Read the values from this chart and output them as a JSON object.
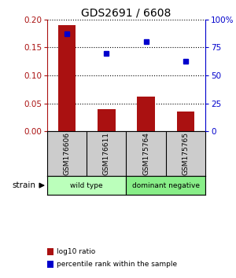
{
  "title": "GDS2691 / 6608",
  "samples": [
    "GSM176606",
    "GSM176611",
    "GSM175764",
    "GSM175765"
  ],
  "log10_ratio": [
    0.19,
    0.04,
    0.062,
    0.035
  ],
  "percentile_rank": [
    87,
    70,
    80,
    63
  ],
  "bar_color": "#aa1111",
  "dot_color": "#0000cc",
  "ylim_left": [
    0,
    0.2
  ],
  "ylim_right": [
    0,
    100
  ],
  "yticks_left": [
    0,
    0.05,
    0.1,
    0.15,
    0.2
  ],
  "yticks_right": [
    0,
    25,
    50,
    75,
    100
  ],
  "ytick_labels_right": [
    "0",
    "25",
    "50",
    "75",
    "100%"
  ],
  "groups": [
    {
      "label": "wild type",
      "color": "#bbffbb",
      "indices": [
        0,
        1
      ]
    },
    {
      "label": "dominant negative",
      "color": "#88ee88",
      "indices": [
        2,
        3
      ]
    }
  ],
  "strain_label": "strain",
  "legend": [
    {
      "label": "log10 ratio",
      "color": "#aa1111"
    },
    {
      "label": "percentile rank within the sample",
      "color": "#0000cc"
    }
  ],
  "background_color": "#ffffff",
  "label_area_color": "#cccccc"
}
